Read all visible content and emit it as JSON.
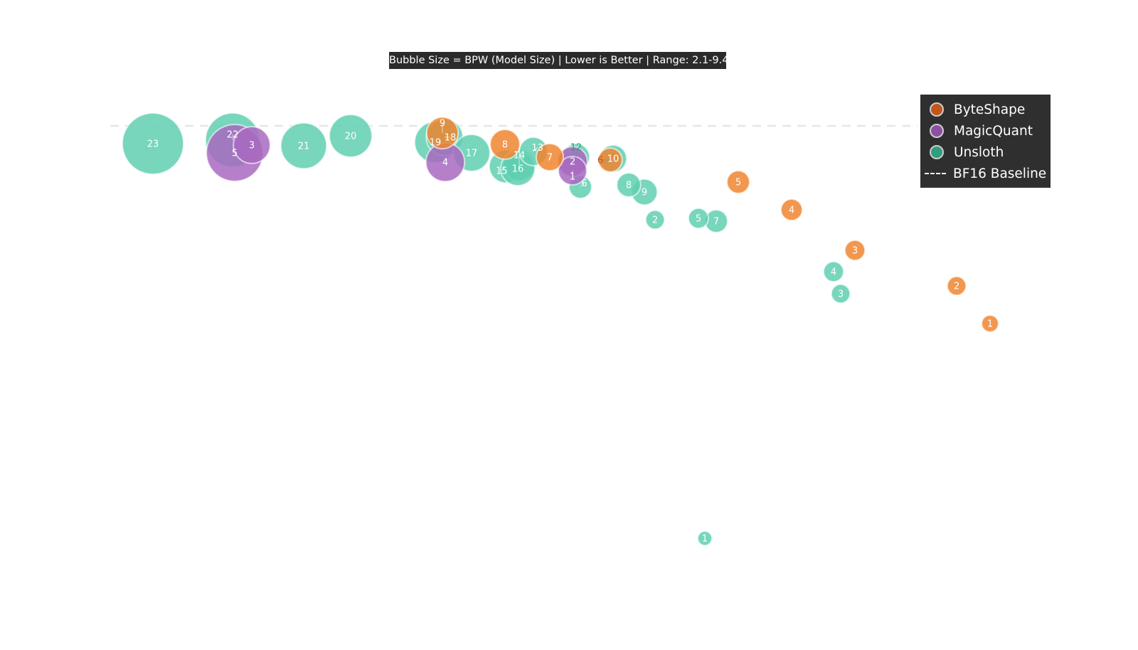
{
  "chart_data": {
    "type": "scatter",
    "subtype": "bubble",
    "annotation": "Bubble Size = BPW (Model Size) | Lower is Better | Range: 2.1-9.4",
    "size_field": "BPW",
    "size_range": [
      2.1,
      9.4
    ],
    "grid": false,
    "axes_visible": false,
    "xlim": [
      0,
      160
    ],
    "ylim": [
      0,
      91.4
    ],
    "baseline": {
      "name": "BF16 Baseline",
      "y": 73.7,
      "style": "dashed",
      "color": "#e6e6e6"
    },
    "legend_position": "top-right",
    "series": [
      {
        "name": "Unsloth",
        "color": "#5fcfb0",
        "legend_color": "#2e9e7e",
        "points": [
          {
            "label": "23",
            "x": 21.5,
            "y": 71.2,
            "bpw": 9.4
          },
          {
            "label": "22",
            "x": 32.7,
            "y": 71.7,
            "bpw": 8.3
          },
          {
            "label": "21",
            "x": 42.7,
            "y": 70.9,
            "bpw": 7.0
          },
          {
            "label": "20",
            "x": 49.3,
            "y": 72.3,
            "bpw": 6.5
          },
          {
            "label": "19",
            "x": 61.2,
            "y": 71.4,
            "bpw": 6.3
          },
          {
            "label": "18",
            "x": 62.5,
            "y": 72.1,
            "bpw": 5.6
          },
          {
            "label": "17",
            "x": 66.3,
            "y": 69.9,
            "bpw": 5.6
          },
          {
            "label": "15",
            "x": 71.1,
            "y": 68.0,
            "bpw": 5.0
          },
          {
            "label": "14",
            "x": 73.0,
            "y": 68.2,
            "bpw": 4.8
          },
          {
            "label": "16",
            "x": 72.8,
            "y": 67.7,
            "bpw": 5.2
          },
          {
            "label": "13",
            "x": 75.0,
            "y": 70.1,
            "bpw": 4.3
          },
          {
            "label": "12",
            "x": 81.0,
            "y": 69.3,
            "bpw": 4.1
          },
          {
            "label": "10",
            "x": 86.2,
            "y": 69.1,
            "bpw": 4.1
          },
          {
            "label": "9",
            "x": 90.6,
            "y": 64.4,
            "bpw": 3.9
          },
          {
            "label": "8",
            "x": 88.4,
            "y": 65.4,
            "bpw": 3.6
          },
          {
            "label": "7",
            "x": 100.7,
            "y": 60.3,
            "bpw": 3.4
          },
          {
            "label": "6",
            "x": 81.6,
            "y": 65.1,
            "bpw": 3.4
          },
          {
            "label": "5",
            "x": 98.2,
            "y": 60.7,
            "bpw": 3.0
          },
          {
            "label": "4",
            "x": 117.2,
            "y": 53.2,
            "bpw": 3.0
          },
          {
            "label": "3",
            "x": 118.2,
            "y": 50.1,
            "bpw": 2.8
          },
          {
            "label": "2",
            "x": 92.1,
            "y": 60.5,
            "bpw": 2.8
          },
          {
            "label": "1",
            "x": 99.1,
            "y": 15.7,
            "bpw": 2.1
          }
        ]
      },
      {
        "name": "MagicQuant",
        "color": "#a868c0",
        "legend_color": "#8e4fa0",
        "points": [
          {
            "label": "5",
            "x": 33.0,
            "y": 69.9,
            "bpw": 8.7
          },
          {
            "label": "3",
            "x": 35.4,
            "y": 71.0,
            "bpw": 5.6
          },
          {
            "label": "4",
            "x": 62.6,
            "y": 68.6,
            "bpw": 5.9
          },
          {
            "label": "2",
            "x": 80.5,
            "y": 68.7,
            "bpw": 4.5
          },
          {
            "label": "1",
            "x": 80.5,
            "y": 67.4,
            "bpw": 4.3
          }
        ]
      },
      {
        "name": "ByteShape",
        "color": "#f0852f",
        "legend_color": "#c0561a",
        "points": [
          {
            "label": "9",
            "x": 62.2,
            "y": 72.7,
            "bpw": 4.8
          },
          {
            "label": "8",
            "x": 71.0,
            "y": 71.1,
            "bpw": 4.5
          },
          {
            "label": "7",
            "x": 77.3,
            "y": 69.3,
            "bpw": 4.1
          },
          {
            "label": "6",
            "x": 85.8,
            "y": 68.9,
            "bpw": 3.6
          },
          {
            "label": "5",
            "x": 103.8,
            "y": 65.8,
            "bpw": 3.4
          },
          {
            "label": "4",
            "x": 111.3,
            "y": 61.9,
            "bpw": 3.2
          },
          {
            "label": "3",
            "x": 120.2,
            "y": 56.2,
            "bpw": 3.0
          },
          {
            "label": "2",
            "x": 134.5,
            "y": 51.2,
            "bpw": 2.8
          },
          {
            "label": "1",
            "x": 139.2,
            "y": 45.9,
            "bpw": 2.5
          }
        ]
      }
    ],
    "legend": [
      {
        "label": "ByteShape",
        "color": "#c0561a"
      },
      {
        "label": "MagicQuant",
        "color": "#8e4fa0"
      },
      {
        "label": "Unsloth",
        "color": "#2e9e7e"
      },
      {
        "label": "BF16 Baseline",
        "dash": true
      }
    ]
  }
}
